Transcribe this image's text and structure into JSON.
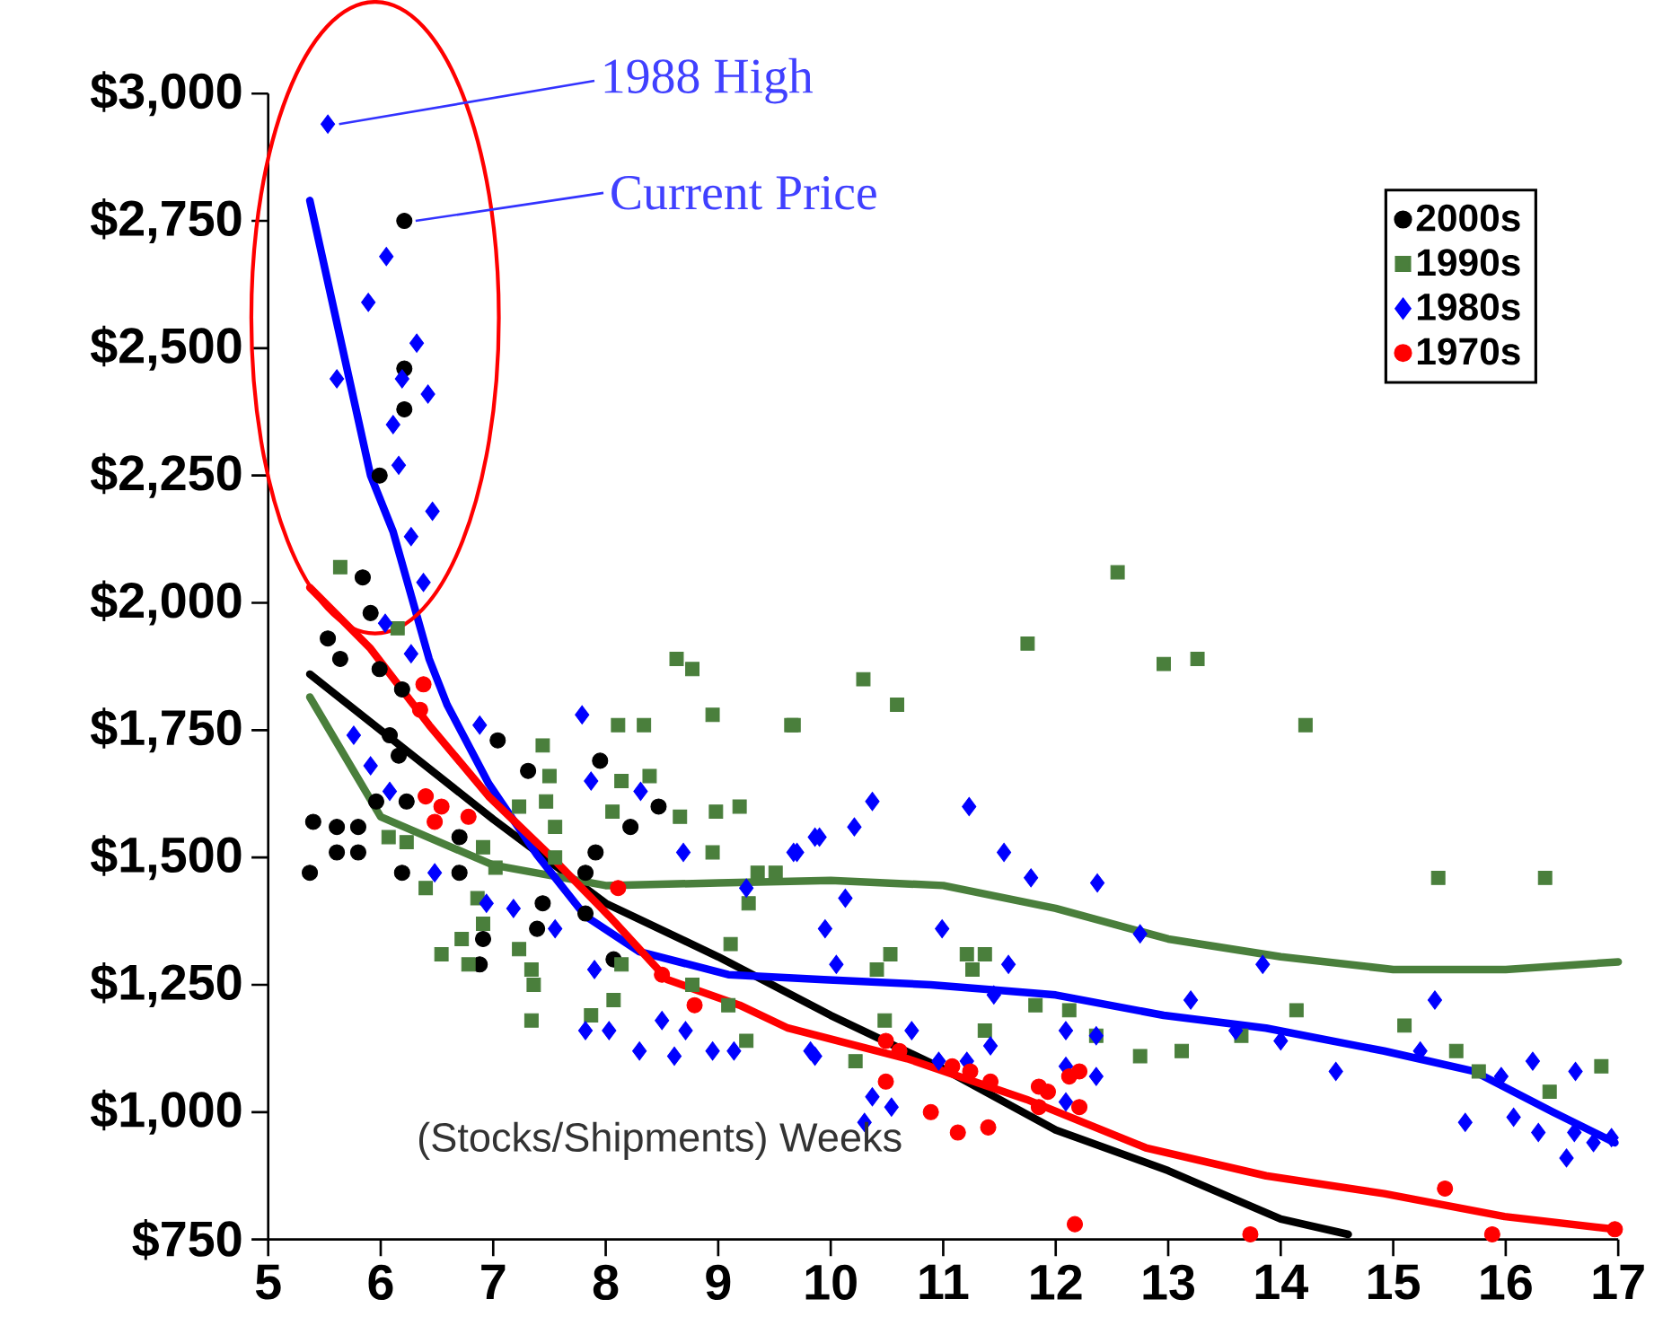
{
  "chart_data": {
    "type": "scatter",
    "xlabel": "(Stocks/Shipments) Weeks",
    "annotations": [
      {
        "text": "1988 High",
        "x": 5.53,
        "y": 2940
      },
      {
        "text": "Current Price",
        "x": 6.21,
        "y": 2750
      }
    ],
    "xlim": [
      5,
      17
    ],
    "ylim": [
      750,
      3000
    ],
    "xticks": [
      5,
      6,
      7,
      8,
      9,
      10,
      11,
      12,
      13,
      14,
      15,
      16,
      17
    ],
    "yticks": [
      {
        "value": 750,
        "label": "$750"
      },
      {
        "value": 1000,
        "label": "$1,000"
      },
      {
        "value": 1250,
        "label": "$1,250"
      },
      {
        "value": 1500,
        "label": "$1,500"
      },
      {
        "value": 1750,
        "label": "$1,750"
      },
      {
        "value": 2000,
        "label": "$2,000"
      },
      {
        "value": 2250,
        "label": "$2,250"
      },
      {
        "value": 2500,
        "label": "$2,500"
      },
      {
        "value": 2750,
        "label": "$2,750"
      },
      {
        "value": 3000,
        "label": "$3,000"
      }
    ],
    "legend": "top right",
    "series": [
      {
        "name": "2000s",
        "color": "#000000",
        "marker": "circle",
        "x": [
          6.21,
          6.21,
          6.21,
          5.99,
          5.84,
          5.91,
          5.53,
          5.64,
          5.99,
          6.19,
          6.08,
          6.16,
          7.04,
          5.96,
          6.23,
          5.4,
          5.61,
          5.8,
          5.61,
          5.8,
          5.37,
          6.19,
          6.7,
          6.7,
          7.31,
          7.95,
          8.22,
          8.47,
          7.91,
          7.44,
          7.39,
          6.91,
          6.88,
          7.82,
          8.07,
          7.82
        ],
        "values": [
          2750,
          2460,
          2380,
          2250,
          2050,
          1980,
          1930,
          1890,
          1870,
          1830,
          1740,
          1700,
          1730,
          1610,
          1610,
          1570,
          1560,
          1560,
          1510,
          1510,
          1470,
          1470,
          1470,
          1540,
          1670,
          1690,
          1560,
          1600,
          1510,
          1410,
          1360,
          1340,
          1290,
          1390,
          1300,
          1470
        ]
      },
      {
        "name": "1990s",
        "color": "#4a7f3c",
        "marker": "square",
        "x": [
          5.64,
          6.15,
          7.44,
          7.5,
          7.47,
          7.55,
          6.07,
          6.23,
          6.91,
          7.02,
          7.23,
          7.55,
          6.4,
          6.86,
          6.91,
          6.72,
          6.54,
          6.78,
          7.23,
          7.34,
          7.36,
          7.34,
          7.87,
          8.07,
          8.14,
          8.11,
          8.34,
          8.63,
          8.77,
          8.95,
          9.65,
          8.14,
          8.39,
          8.06,
          8.66,
          8.98,
          9.19,
          8.95,
          9.35,
          9.51,
          9.27,
          9.11,
          8.77,
          9.09,
          9.25,
          12.55,
          11.75,
          10.29,
          10.59,
          9.67,
          12.96,
          13.26,
          14.22,
          15.4,
          16.35,
          10.53,
          10.41,
          11.21,
          11.37,
          11.26,
          11.82,
          12.12,
          14.14,
          10.48,
          11.37,
          12.36,
          12.75,
          13.12,
          15.1,
          15.56,
          15.76,
          16.39,
          16.85,
          10.22,
          13.65
        ],
        "values": [
          2070,
          1950,
          1720,
          1660,
          1610,
          1560,
          1540,
          1530,
          1520,
          1480,
          1600,
          1500,
          1440,
          1420,
          1370,
          1340,
          1310,
          1290,
          1320,
          1280,
          1250,
          1180,
          1190,
          1220,
          1290,
          1760,
          1760,
          1890,
          1870,
          1780,
          1760,
          1650,
          1660,
          1590,
          1580,
          1590,
          1600,
          1510,
          1470,
          1470,
          1410,
          1330,
          1250,
          1210,
          1140,
          2060,
          1920,
          1850,
          1800,
          1760,
          1880,
          1890,
          1760,
          1460,
          1460,
          1310,
          1280,
          1310,
          1310,
          1280,
          1210,
          1200,
          1200,
          1180,
          1160,
          1150,
          1110,
          1120,
          1170,
          1120,
          1080,
          1040,
          1090,
          1100,
          1150
        ]
      },
      {
        "name": "1980s",
        "color": "#0000ff",
        "marker": "diamond",
        "x": [
          5.53,
          6.05,
          5.89,
          6.32,
          6.42,
          6.19,
          5.61,
          6.11,
          6.16,
          6.46,
          6.27,
          6.38,
          6.04,
          6.27,
          6.88,
          7.79,
          5.76,
          5.91,
          6.08,
          7.87,
          8.31,
          8.69,
          6.48,
          6.94,
          7.18,
          7.55,
          7.9,
          7.82,
          8.03,
          8.3,
          8.5,
          8.71,
          8.61,
          8.95,
          9.14,
          9.86,
          9.25,
          9.67,
          9.86,
          10.37,
          11.23,
          9.9,
          10.21,
          9.7,
          10.13,
          11.54,
          11.78,
          12.37,
          9.95,
          10.99,
          10.05,
          11.58,
          11.45,
          12.75,
          13.2,
          13.84,
          15.37,
          9.82,
          10.72,
          10.96,
          11.21,
          11.42,
          12.09,
          12.36,
          12.36,
          12.09,
          12.09,
          10.37,
          10.54,
          10.3,
          13.6,
          14.0,
          14.49,
          15.24,
          15.64,
          15.96,
          16.24,
          16.07,
          16.29,
          16.62,
          16.54,
          16.61,
          16.94,
          16.78
        ],
        "values": [
          2940,
          2680,
          2590,
          2510,
          2410,
          2440,
          2440,
          2350,
          2270,
          2180,
          2130,
          2040,
          1960,
          1900,
          1760,
          1780,
          1740,
          1680,
          1630,
          1650,
          1630,
          1510,
          1470,
          1410,
          1400,
          1360,
          1280,
          1160,
          1160,
          1120,
          1180,
          1160,
          1110,
          1120,
          1120,
          1110,
          1440,
          1510,
          1540,
          1610,
          1600,
          1540,
          1560,
          1510,
          1420,
          1510,
          1460,
          1450,
          1360,
          1360,
          1290,
          1290,
          1230,
          1350,
          1220,
          1290,
          1220,
          1120,
          1160,
          1100,
          1100,
          1130,
          1160,
          1150,
          1070,
          1090,
          1020,
          1030,
          1010,
          980,
          1160,
          1140,
          1080,
          1120,
          980,
          1070,
          1100,
          990,
          960,
          1080,
          910,
          960,
          950,
          940
        ]
      },
      {
        "name": "1970s",
        "color": "#ff0000",
        "marker": "circle",
        "x": [
          6.38,
          6.35,
          6.4,
          6.54,
          6.48,
          6.78,
          8.11,
          8.5,
          8.79,
          10.49,
          10.61,
          10.49,
          10.89,
          11.08,
          11.24,
          11.42,
          11.13,
          11.4,
          11.85,
          11.93,
          11.85,
          12.12,
          12.21,
          12.21,
          15.46,
          12.17,
          13.73,
          15.88,
          16.97
        ],
        "values": [
          1840,
          1790,
          1620,
          1600,
          1570,
          1580,
          1440,
          1270,
          1210,
          1140,
          1120,
          1060,
          1000,
          1090,
          1080,
          1060,
          960,
          970,
          1050,
          1040,
          1010,
          1070,
          1080,
          1010,
          850,
          780,
          760,
          760,
          770
        ]
      },
      {
        "type": "line",
        "color": "#000000",
        "x": [
          5.37,
          7.0,
          8.0,
          9.0,
          10.0,
          11.0,
          12.0,
          13.0,
          14.0,
          14.6
        ],
        "values": [
          1860,
          1575,
          1410,
          1305,
          1190,
          1085,
          965,
          885,
          790,
          760
        ]
      },
      {
        "type": "line",
        "color": "#4a7f3c",
        "x": [
          5.37,
          6.0,
          7.0,
          8.0,
          9.0,
          10.0,
          11.0,
          12.0,
          13.0,
          14.0,
          15.0,
          16.0,
          17.0
        ],
        "values": [
          1815,
          1580,
          1485,
          1445,
          1450,
          1455,
          1445,
          1400,
          1340,
          1305,
          1280,
          1280,
          1295
        ]
      },
      {
        "type": "line",
        "color": "#0000ff",
        "x": [
          5.37,
          5.64,
          5.91,
          6.11,
          6.43,
          6.59,
          6.96,
          7.39,
          7.82,
          8.3,
          9.09,
          9.94,
          10.89,
          12.0,
          12.96,
          13.87,
          14.92,
          15.72,
          16.42,
          16.97
        ],
        "values": [
          2790,
          2520,
          2250,
          2140,
          1890,
          1800,
          1645,
          1505,
          1385,
          1315,
          1270,
          1260,
          1250,
          1230,
          1190,
          1165,
          1120,
          1080,
          1000,
          940
        ]
      },
      {
        "type": "line",
        "color": "#ff0000",
        "x": [
          5.37,
          5.91,
          6.43,
          6.96,
          7.5,
          8.03,
          8.55,
          9.19,
          9.62,
          10.68,
          11.74,
          12.8,
          13.87,
          14.92,
          15.99,
          16.97
        ],
        "values": [
          2030,
          1910,
          1760,
          1620,
          1505,
          1385,
          1260,
          1210,
          1165,
          1105,
          1025,
          930,
          875,
          840,
          795,
          770
        ]
      }
    ]
  }
}
